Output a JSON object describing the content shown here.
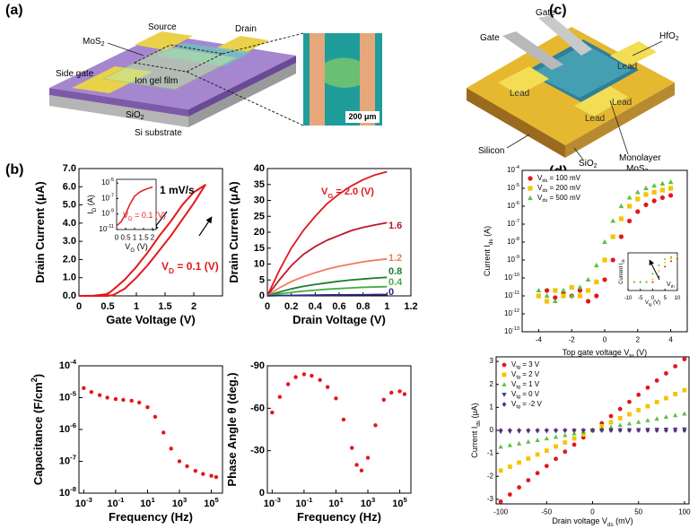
{
  "panel_labels": [
    "(a)",
    "(b)",
    "(c)",
    "(d)"
  ],
  "diagram_a": {
    "source": "Source",
    "drain": "Drain",
    "mos2": "MoS_2",
    "side_gate": "Side gate",
    "ion_gel": "Ion gel film",
    "sio2": "SiO_2",
    "substrate": "Si substrate",
    "scale_bar": "200 μm"
  },
  "diagram_c": {
    "gate_1": "Gate",
    "gate_2": "Gate",
    "lead_1": "Lead",
    "lead_2": "Lead",
    "lead_3": "Lead",
    "lead_4": "Lead",
    "hfo2": "HfO_2",
    "monolayer": "Monolayer",
    "mos2": "MoS_2",
    "silicon": "Silicon",
    "sio2": "SiO_2"
  },
  "chart_data": [
    {
      "type": "line",
      "xlabel": "Gate Voltage (V)",
      "ylabel": "Drain Current (μA)",
      "xlim": [
        0,
        2.5
      ],
      "ylim": [
        0,
        7
      ],
      "xticks": [
        0,
        0.5,
        1,
        1.5,
        2
      ],
      "yticks": [
        {
          "value": 0,
          "label": "0.0"
        },
        {
          "value": 1,
          "label": "1.0"
        },
        {
          "value": 2,
          "label": "2.0"
        },
        {
          "value": 3,
          "label": "3.0"
        },
        {
          "value": 4,
          "label": "4.0"
        },
        {
          "value": 5,
          "label": "5.0"
        },
        {
          "value": 6,
          "label": "6.0"
        },
        {
          "value": 7,
          "label": "7.0"
        }
      ],
      "series": [
        {
          "color": "#e3171b",
          "x": [
            0,
            0.25,
            0.5,
            0.6,
            0.8,
            1.0,
            1.2,
            1.4,
            1.6,
            1.8,
            2.0,
            2.2,
            2.0,
            1.8,
            1.6,
            1.4,
            1.2,
            1.0,
            0.8,
            0.6,
            0.5,
            0.25,
            0
          ],
          "values": [
            0,
            0,
            0,
            0.05,
            0.4,
            1.0,
            1.7,
            2.5,
            3.3,
            4.2,
            5.1,
            6.1,
            5.7,
            5.0,
            4.1,
            3.3,
            2.4,
            1.6,
            0.9,
            0.35,
            0.1,
            0.01,
            0
          ]
        }
      ],
      "annotations": [
        "1 mV/s",
        "V_D = 0.1 (V)"
      ]
    },
    {
      "type": "line",
      "xlabel": "V_G (V)",
      "ylabel": "I_D (A)",
      "xlim": [
        0,
        2.2
      ],
      "ylim": [
        1e-11,
        3e-05
      ],
      "ylog": true,
      "xticks": [
        0,
        0.5,
        1,
        1.5,
        2
      ],
      "yticks": [
        {
          "value": 1e-11,
          "label": "10^-11"
        },
        {
          "value": 1e-09,
          "label": "10^-9"
        },
        {
          "value": 1e-07,
          "label": "10^-7"
        },
        {
          "value": 1e-05,
          "label": "10^-5"
        }
      ],
      "series": [
        {
          "color": "#e3171b",
          "x": [
            0,
            0.25,
            0.5,
            0.75,
            1,
            1.25,
            1.5,
            1.75,
            2
          ],
          "values": [
            3e-11,
            1e-10,
            1e-09,
            2e-08,
            2e-07,
            6e-07,
            1.2e-06,
            2e-06,
            3e-06
          ]
        }
      ],
      "annotations": [
        "V_D = 0.1 (V)"
      ]
    },
    {
      "type": "line",
      "xlabel": "Drain Voltage (V)",
      "ylabel": "Drain Current (μA)",
      "xlim": [
        0,
        1.2
      ],
      "ylim": [
        0,
        40
      ],
      "xticks": [
        0,
        0.2,
        0.4,
        0.6,
        0.8,
        1,
        1.2
      ],
      "yticks": [
        0,
        5,
        10,
        15,
        20,
        25,
        30,
        35,
        40
      ],
      "legend": "inline",
      "x": [
        0,
        0.1,
        0.2,
        0.3,
        0.4,
        0.5,
        0.6,
        0.7,
        0.8,
        0.9,
        1.0
      ],
      "series": [
        {
          "name": "V_G = 2.0 (V)",
          "color": "#e3171b",
          "values": [
            0,
            8,
            15,
            20.5,
            25,
            29,
            32,
            34.5,
            36.5,
            38,
            39
          ]
        },
        {
          "name": "1.6",
          "color": "#c0162a",
          "values": [
            0,
            5,
            9.5,
            13,
            15.5,
            17.5,
            19,
            20.5,
            21.5,
            22.3,
            23
          ]
        },
        {
          "name": "1.2",
          "color": "#f07b5a",
          "values": [
            0,
            2.5,
            4.5,
            6,
            7.3,
            8.4,
            9.3,
            10,
            10.7,
            11.2,
            11.6
          ]
        },
        {
          "name": "0.8",
          "color": "#1a7f2c",
          "values": [
            0,
            1.2,
            2.2,
            3,
            3.6,
            4.1,
            4.6,
            5,
            5.3,
            5.6,
            5.8
          ]
        },
        {
          "name": "0.4",
          "color": "#40b040",
          "values": [
            0,
            0.6,
            1.1,
            1.5,
            1.8,
            2.1,
            2.3,
            2.5,
            2.7,
            2.8,
            2.9
          ]
        },
        {
          "name": "0",
          "color": "#2a2a8a",
          "values": [
            0,
            0.1,
            0.15,
            0.2,
            0.25,
            0.3,
            0.3,
            0.35,
            0.35,
            0.4,
            0.4
          ]
        }
      ]
    },
    {
      "type": "scatter",
      "xlabel": "Frequency (Hz)",
      "ylabel": "Capacitance (F/cm^2)",
      "xlog": true,
      "ylog": true,
      "xlim": [
        0.0005,
        500000
      ],
      "ylim": [
        1e-08,
        0.0001
      ],
      "xticks": [
        {
          "value": 0.001,
          "label": "10^-3"
        },
        {
          "value": 0.1,
          "label": "10^-1"
        },
        {
          "value": 10,
          "label": "10^1"
        },
        {
          "value": 1000,
          "label": "10^3"
        },
        {
          "value": 100000,
          "label": "10^5"
        }
      ],
      "yticks": [
        {
          "value": 1e-08,
          "label": "10^-8"
        },
        {
          "value": 1e-07,
          "label": "10^-7"
        },
        {
          "value": 1e-06,
          "label": "10^-6"
        },
        {
          "value": 1e-05,
          "label": "10^-5"
        },
        {
          "value": 0.0001,
          "label": "10^-4"
        }
      ],
      "x": [
        0.001,
        0.003,
        0.01,
        0.03,
        0.1,
        0.3,
        1,
        3,
        10,
        30,
        100,
        300,
        1000,
        3000,
        10000,
        30000,
        100000,
        200000
      ],
      "series": [
        {
          "color": "#e3171b",
          "marker": "circle",
          "values": [
            2e-05,
            1.5e-05,
            1.2e-05,
            1e-05,
            9e-06,
            8.5e-06,
            8e-06,
            7e-06,
            5e-06,
            2.5e-06,
            8e-07,
            2.5e-07,
            1e-07,
            7e-08,
            5e-08,
            4e-08,
            3.5e-08,
            3.2e-08
          ]
        }
      ]
    },
    {
      "type": "scatter",
      "xlabel": "Frequency (Hz)",
      "ylabel": "Phase Angle θ (deg.)",
      "xlog": true,
      "xlim": [
        0.0005,
        500000
      ],
      "ylim": [
        0,
        -90
      ],
      "xticks": [
        {
          "value": 0.001,
          "label": "10^-3"
        },
        {
          "value": 0.1,
          "label": "10^-1"
        },
        {
          "value": 10,
          "label": "10^1"
        },
        {
          "value": 1000,
          "label": "10^3"
        },
        {
          "value": 100000,
          "label": "10^5"
        }
      ],
      "yticks": [
        0,
        -30,
        -60,
        -90
      ],
      "x": [
        0.001,
        0.003,
        0.01,
        0.03,
        0.1,
        0.3,
        1,
        3,
        10,
        30,
        100,
        200,
        400,
        1000,
        3000,
        10000,
        30000,
        100000,
        200000
      ],
      "series": [
        {
          "color": "#e3171b",
          "marker": "circle",
          "values": [
            -57,
            -68,
            -77,
            -82,
            -84,
            -83,
            -80,
            -75,
            -67,
            -52,
            -32,
            -20,
            -16,
            -25,
            -48,
            -66,
            -71,
            -72,
            -70
          ]
        }
      ]
    },
    {
      "type": "scatter",
      "xlabel": "Top gate voltage V_tg (V)",
      "ylabel": "Current I_ds (A)",
      "ylog": true,
      "xlim": [
        -5,
        5
      ],
      "ylim": [
        1e-13,
        0.0001
      ],
      "xticks": [
        -4,
        -2,
        0,
        2,
        4
      ],
      "yticks": [
        {
          "value": 1e-13,
          "label": "10^-13"
        },
        {
          "value": 1e-12,
          "label": "10^-12"
        },
        {
          "value": 1e-11,
          "label": "10^-11"
        },
        {
          "value": 1e-10,
          "label": "10^-10"
        },
        {
          "value": 1e-09,
          "label": "10^-9"
        },
        {
          "value": 1e-08,
          "label": "10^-8"
        },
        {
          "value": 1e-07,
          "label": "10^-7"
        },
        {
          "value": 1e-06,
          "label": "10^-6"
        },
        {
          "value": 1e-05,
          "label": "10^-5"
        },
        {
          "value": 0.0001,
          "label": "10^-4"
        }
      ],
      "legend": "upper left",
      "x": [
        -4,
        -3.5,
        -3,
        -2.5,
        -2,
        -1.5,
        -1,
        -0.5,
        0,
        0.5,
        1,
        1.5,
        2,
        2.5,
        3,
        3.5,
        4
      ],
      "series": [
        {
          "name": "V_ds = 100 mV",
          "color": "#e3171b",
          "marker": "circle",
          "values": [
            1e-11,
            2e-11,
            8e-12,
            1.5e-11,
            1e-11,
            2e-11,
            5e-12,
            1e-11,
            8e-11,
            1e-09,
            2e-08,
            1.5e-07,
            5e-07,
            1.2e-06,
            2e-06,
            3e-06,
            4e-06
          ]
        },
        {
          "name": "V_ds = 200 mV",
          "color": "#f5c400",
          "marker": "square",
          "values": [
            1e-11,
            5e-12,
            2e-11,
            1e-11,
            3e-11,
            1e-11,
            2e-11,
            6e-11,
            1e-09,
            2e-08,
            2e-07,
            1e-06,
            2.5e-06,
            4.5e-06,
            6e-06,
            8e-06,
            1e-05
          ]
        },
        {
          "name": "V_ds = 500 mV",
          "color": "#5cc043",
          "marker": "triangle",
          "values": [
            2e-11,
            1e-11,
            5e-12,
            2e-11,
            1e-11,
            3e-11,
            8e-11,
            5e-10,
            1e-08,
            1.5e-07,
            1e-06,
            3e-06,
            6e-06,
            1e-05,
            1.4e-05,
            1.8e-05,
            2.2e-05
          ]
        }
      ]
    },
    {
      "type": "scatter",
      "xlabel": "V_tg (V)",
      "ylabel": "Current I_ds",
      "ylog": true,
      "xlim": [
        -10,
        10
      ],
      "ylim": [
        1e-13,
        0.0001
      ],
      "xticks": [
        -10,
        -5,
        0,
        5,
        10
      ],
      "x": [
        -10,
        -7.5,
        -5,
        -2.5,
        0,
        2.5,
        5,
        7.5,
        10
      ],
      "series": [
        {
          "color": "#e3171b",
          "marker": "circle",
          "values": [
            1e-11,
            1e-11,
            1e-11,
            1e-11,
            1e-11,
            2e-10,
            5e-08,
            1e-06,
            5e-06
          ]
        },
        {
          "color": "#f5c400",
          "marker": "circle",
          "values": [
            1e-11,
            1e-11,
            1e-11,
            1e-11,
            5e-11,
            5e-09,
            5e-07,
            4e-06,
            1e-05
          ]
        },
        {
          "color": "#5cc043",
          "marker": "circle",
          "values": [
            1e-11,
            1e-11,
            1e-11,
            1e-11,
            1e-09,
            1e-07,
            3e-06,
            1e-05,
            2e-05
          ]
        }
      ],
      "annotations": [
        "V_th"
      ]
    },
    {
      "type": "scatter",
      "xlabel": "Drain voltage V_ds (mV)",
      "ylabel": "Current I_ds (μA)",
      "xlim": [
        -105,
        105
      ],
      "ylim": [
        -3.2,
        3.2
      ],
      "xticks": [
        -100,
        -50,
        0,
        50,
        100
      ],
      "yticks": [
        -3,
        -2,
        -1,
        0,
        1,
        2,
        3
      ],
      "legend": "upper left",
      "x": [
        -100,
        -90,
        -80,
        -70,
        -60,
        -50,
        -40,
        -30,
        -20,
        -10,
        0,
        10,
        20,
        30,
        40,
        50,
        60,
        70,
        80,
        90,
        100
      ],
      "series": [
        {
          "name": "V_tg = 3 V",
          "color": "#e3171b",
          "marker": "circle",
          "values": [
            -3.1,
            -2.79,
            -2.48,
            -2.17,
            -1.86,
            -1.55,
            -1.24,
            -0.93,
            -0.62,
            -0.31,
            0,
            0.31,
            0.62,
            0.93,
            1.24,
            1.55,
            1.86,
            2.17,
            2.48,
            2.79,
            3.1
          ]
        },
        {
          "name": "V_tg = 2 V",
          "color": "#f5c400",
          "marker": "square",
          "values": [
            -1.75,
            -1.58,
            -1.4,
            -1.23,
            -1.05,
            -0.88,
            -0.7,
            -0.53,
            -0.35,
            -0.18,
            0,
            0.18,
            0.35,
            0.53,
            0.7,
            0.88,
            1.05,
            1.23,
            1.4,
            1.58,
            1.75
          ]
        },
        {
          "name": "V_tg = 1 V",
          "color": "#5cc043",
          "marker": "triangle",
          "values": [
            -0.72,
            -0.65,
            -0.58,
            -0.5,
            -0.43,
            -0.36,
            -0.29,
            -0.22,
            -0.14,
            -0.07,
            0,
            0.07,
            0.14,
            0.22,
            0.29,
            0.36,
            0.43,
            0.5,
            0.58,
            0.65,
            0.72
          ]
        },
        {
          "name": "V_tg = 0 V",
          "color": "#2e3a87",
          "marker": "triangle-down",
          "values": [
            -0.05,
            -0.045,
            -0.04,
            -0.035,
            -0.03,
            -0.025,
            -0.02,
            -0.015,
            -0.01,
            -0.005,
            0,
            0.005,
            0.01,
            0.015,
            0.02,
            0.025,
            0.03,
            0.035,
            0.04,
            0.045,
            0.05
          ]
        },
        {
          "name": "V_tg = -2 V",
          "color": "#5c2f7e",
          "marker": "diamond",
          "values": [
            0,
            0,
            0,
            0,
            0,
            0,
            0,
            0,
            0,
            0,
            0,
            0,
            0,
            0,
            0,
            0,
            0,
            0,
            0,
            0,
            0
          ]
        }
      ]
    }
  ]
}
